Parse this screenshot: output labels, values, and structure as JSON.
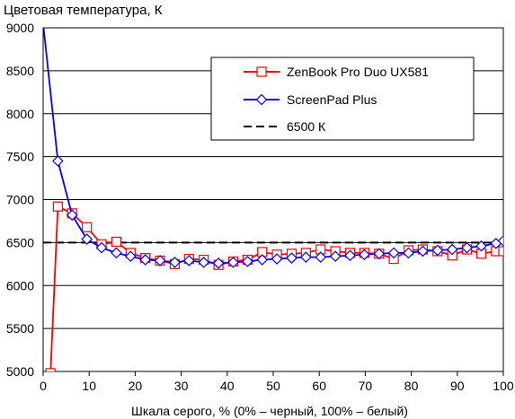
{
  "chart_data": {
    "type": "line",
    "title": "Цветовая температура, К",
    "xlabel": "Шкала серого, % (0% – черный, 100% – белый)",
    "ylabel": "",
    "xlim": [
      0,
      100
    ],
    "ylim": [
      5000,
      9000
    ],
    "xticks": [
      "0",
      "10",
      "20",
      "30",
      "40",
      "50",
      "60",
      "70",
      "80",
      "90",
      "100"
    ],
    "yticks": [
      "5000",
      "5500",
      "6000",
      "6500",
      "7000",
      "7500",
      "8000",
      "8500",
      "9000"
    ],
    "grid": "horizontal",
    "legend_position": "top-right",
    "series": [
      {
        "name": "ZenBook Pro Duo UX581",
        "color": "#ff0000",
        "marker": "square",
        "x": [
          1.6,
          3.2,
          6.3,
          9.5,
          12.7,
          15.9,
          19.0,
          22.2,
          25.4,
          28.6,
          31.7,
          34.9,
          38.1,
          41.3,
          44.4,
          47.6,
          50.8,
          54.0,
          57.1,
          60.3,
          63.5,
          66.7,
          69.8,
          73.0,
          76.2,
          79.4,
          82.5,
          85.7,
          88.9,
          92.1,
          95.2,
          98.4,
          100
        ],
        "values": [
          4980,
          6920,
          6840,
          6680,
          6480,
          6510,
          6380,
          6320,
          6290,
          6250,
          6310,
          6300,
          6240,
          6280,
          6300,
          6390,
          6360,
          6370,
          6380,
          6420,
          6400,
          6380,
          6380,
          6370,
          6310,
          6410,
          6420,
          6400,
          6350,
          6420,
          6370,
          6400,
          6400
        ]
      },
      {
        "name": "ScreenPad Plus",
        "color": "#0000ff",
        "marker": "diamond",
        "x": [
          0,
          3.2,
          6.3,
          9.5,
          12.7,
          15.9,
          19.0,
          22.2,
          25.4,
          28.6,
          31.7,
          34.9,
          38.1,
          41.3,
          44.4,
          47.6,
          50.8,
          54.0,
          57.1,
          60.3,
          63.5,
          66.7,
          69.8,
          73.0,
          76.2,
          79.4,
          82.5,
          85.7,
          88.9,
          92.1,
          95.2,
          98.4,
          100
        ],
        "values": [
          9050,
          7450,
          6820,
          6540,
          6440,
          6380,
          6340,
          6300,
          6290,
          6270,
          6290,
          6270,
          6260,
          6270,
          6280,
          6300,
          6310,
          6320,
          6330,
          6330,
          6340,
          6350,
          6360,
          6370,
          6380,
          6380,
          6400,
          6410,
          6420,
          6440,
          6460,
          6490,
          6520
        ]
      },
      {
        "name": "6500 К",
        "color": "#000000",
        "marker": "none",
        "dash": true,
        "x": [
          0,
          100
        ],
        "values": [
          6500,
          6500
        ]
      }
    ]
  }
}
